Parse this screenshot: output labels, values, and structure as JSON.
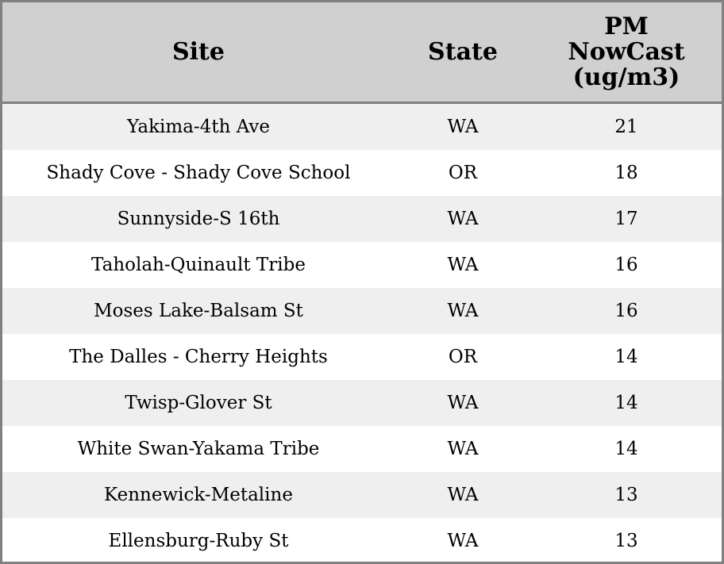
{
  "chart_data": {
    "type": "table",
    "columns": [
      "Site",
      "State",
      "PM NowCast (ug/m3)"
    ],
    "header_lines": [
      [
        "Site"
      ],
      [
        "State"
      ],
      [
        "PM",
        "NowCast",
        "(ug/m3)"
      ]
    ],
    "rows": [
      [
        "Yakima-4th Ave",
        "WA",
        "21"
      ],
      [
        "Shady Cove - Shady Cove School",
        "OR",
        "18"
      ],
      [
        "Sunnyside-S 16th",
        "WA",
        "17"
      ],
      [
        "Taholah-Quinault Tribe",
        "WA",
        "16"
      ],
      [
        "Moses Lake-Balsam St",
        "WA",
        "16"
      ],
      [
        "The Dalles - Cherry Heights",
        "OR",
        "14"
      ],
      [
        "Twisp-Glover St",
        "WA",
        "14"
      ],
      [
        "White Swan-Yakama Tribe",
        "WA",
        "14"
      ],
      [
        "Kennewick-Metaline",
        "WA",
        "13"
      ],
      [
        "Ellensburg-Ruby St",
        "WA",
        "13"
      ]
    ],
    "colors": {
      "header_bg": "#d0d0d0",
      "stripe_bg": "#efefef",
      "border": "#808080"
    }
  }
}
